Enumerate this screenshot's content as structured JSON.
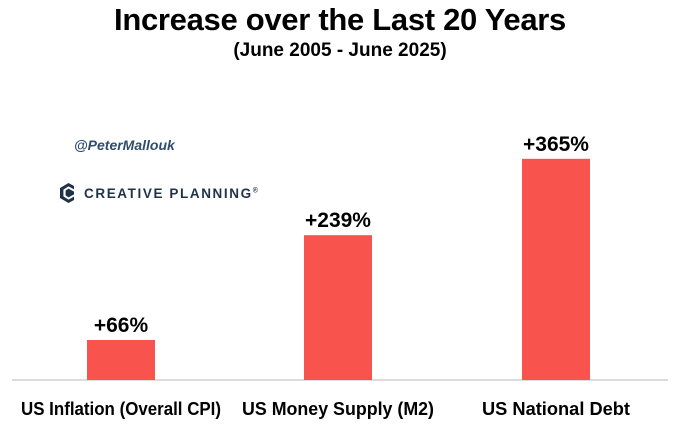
{
  "branding": {
    "handle": "@PeterMallouk",
    "logo_text": "CREATIVE PLANNING",
    "logo_trademark": "®",
    "logo_icon": "creative-planning-logo-icon"
  },
  "colors": {
    "bar": "#f8534c",
    "axis": "#d0d0d0",
    "logo": "#1f3347"
  },
  "chart_data": {
    "type": "bar",
    "title": "Increase over the Last 20 Years",
    "subtitle": "(June 2005 - June 2025)",
    "categories": [
      "US Inflation (Overall CPI)",
      "US Money Supply (M2)",
      "US National Debt"
    ],
    "values": [
      66,
      239,
      365
    ],
    "data_labels": [
      "+66%",
      "+239%",
      "+365%"
    ],
    "ylim": [
      0,
      400
    ],
    "xlabel": "",
    "ylabel": "",
    "grid": false
  }
}
